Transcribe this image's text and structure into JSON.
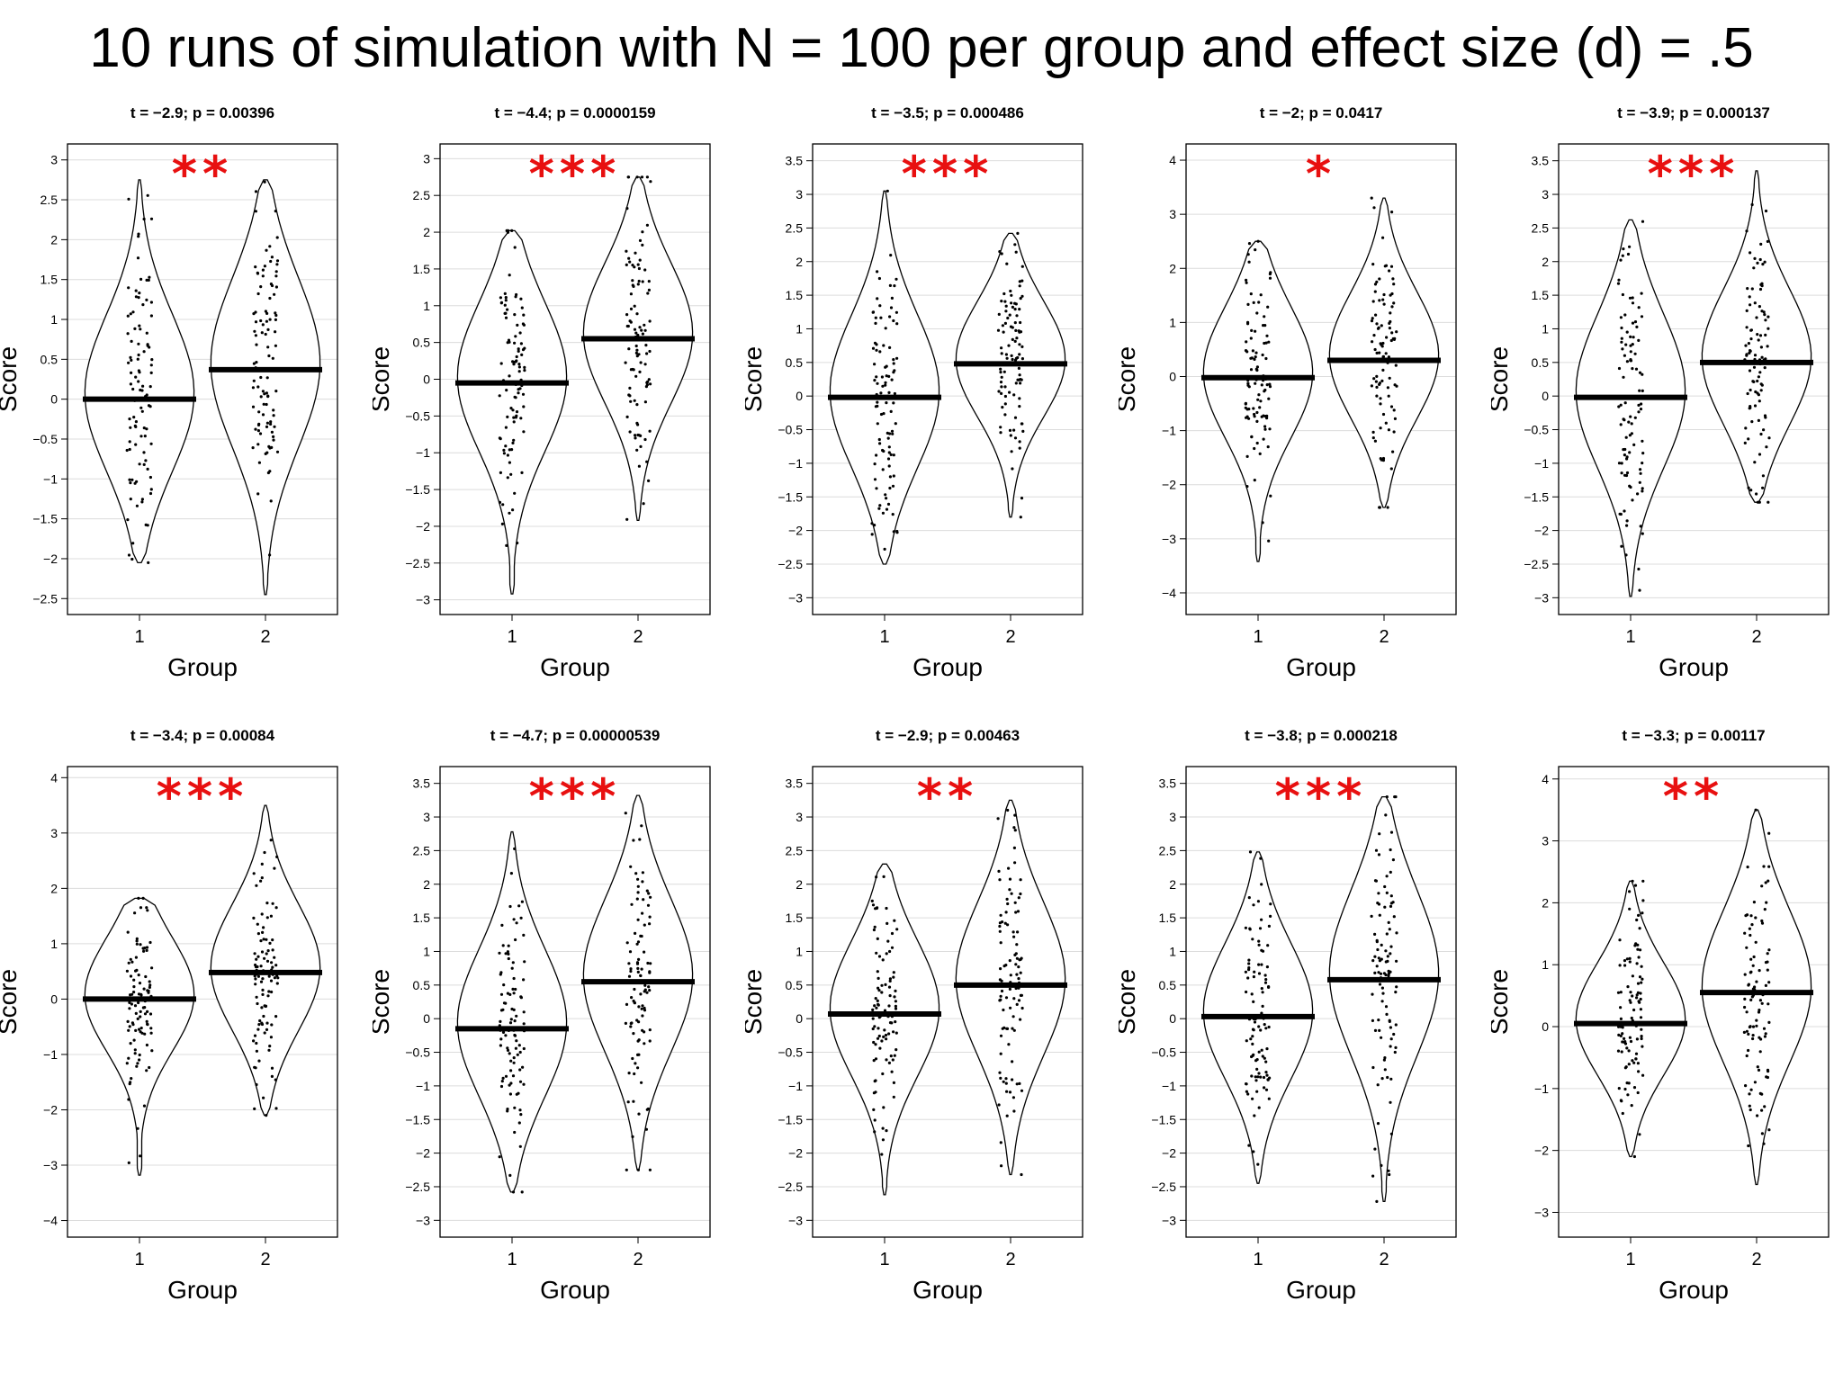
{
  "title": "10 runs of simulation with N = 100 per group and effect size (d) = .5",
  "chart_data": [
    {
      "type": "violin",
      "title": "t = −2.9; p = 0.00396",
      "stars": "**",
      "xlabel": "Group",
      "ylabel": "Score",
      "categories": [
        "1",
        "2"
      ],
      "ylim": [
        -2.7,
        3.2
      ],
      "yticks": [
        -2.5,
        -2,
        -1.5,
        -1,
        -0.5,
        0,
        0.5,
        1,
        1.5,
        2,
        2.5,
        3
      ],
      "group_means": [
        0.0,
        0.37
      ],
      "group_ranges": [
        [
          -2.05,
          2.75
        ],
        [
          -2.45,
          2.75
        ]
      ]
    },
    {
      "type": "violin",
      "title": "t = −4.4; p = 0.0000159",
      "stars": "***",
      "xlabel": "Group",
      "ylabel": "Score",
      "categories": [
        "1",
        "2"
      ],
      "ylim": [
        -3.2,
        3.2
      ],
      "yticks": [
        -3,
        -2.5,
        -2,
        -1.5,
        -1,
        -0.5,
        0,
        0.5,
        1,
        1.5,
        2,
        2.5,
        3
      ],
      "group_means": [
        -0.05,
        0.55
      ],
      "group_ranges": [
        [
          -2.92,
          2.02
        ],
        [
          -1.92,
          2.75
        ]
      ]
    },
    {
      "type": "violin",
      "title": "t = −3.5; p = 0.000486",
      "stars": "***",
      "xlabel": "Group",
      "ylabel": "Score",
      "categories": [
        "1",
        "2"
      ],
      "ylim": [
        -3.25,
        3.75
      ],
      "yticks": [
        -3,
        -2.5,
        -2,
        -1.5,
        -1,
        -0.5,
        0,
        0.5,
        1,
        1.5,
        2,
        2.5,
        3,
        3.5
      ],
      "group_means": [
        -0.02,
        0.48
      ],
      "group_ranges": [
        [
          -2.5,
          3.05
        ],
        [
          -1.8,
          2.42
        ]
      ]
    },
    {
      "type": "violin",
      "title": "t = −2; p = 0.0417",
      "stars": "*",
      "xlabel": "Group",
      "ylabel": "Score",
      "categories": [
        "1",
        "2"
      ],
      "ylim": [
        -4.4,
        4.3
      ],
      "yticks": [
        -4,
        -3,
        -2,
        -1,
        0,
        1,
        2,
        3,
        4
      ],
      "group_means": [
        -0.02,
        0.3
      ],
      "group_ranges": [
        [
          -3.42,
          2.5
        ],
        [
          -2.42,
          3.3
        ]
      ]
    },
    {
      "type": "violin",
      "title": "t = −3.9; p = 0.000137",
      "stars": "***",
      "xlabel": "Group",
      "ylabel": "Score",
      "categories": [
        "1",
        "2"
      ],
      "ylim": [
        -3.25,
        3.75
      ],
      "yticks": [
        -3,
        -2.5,
        -2,
        -1.5,
        -1,
        -0.5,
        0,
        0.5,
        1,
        1.5,
        2,
        2.5,
        3,
        3.5
      ],
      "group_means": [
        -0.02,
        0.5
      ],
      "group_ranges": [
        [
          -2.98,
          2.62
        ],
        [
          -1.58,
          3.35
        ]
      ]
    },
    {
      "type": "violin",
      "title": "t = −3.4; p = 0.00084",
      "stars": "***",
      "xlabel": "Group",
      "ylabel": "Score",
      "categories": [
        "1",
        "2"
      ],
      "ylim": [
        -4.3,
        4.2
      ],
      "yticks": [
        -4,
        -3,
        -2,
        -1,
        0,
        1,
        2,
        3,
        4
      ],
      "group_means": [
        0.0,
        0.48
      ],
      "group_ranges": [
        [
          -3.18,
          1.82
        ],
        [
          -2.1,
          3.5
        ]
      ]
    },
    {
      "type": "violin",
      "title": "t = −4.7; p = 0.00000539",
      "stars": "***",
      "xlabel": "Group",
      "ylabel": "Score",
      "categories": [
        "1",
        "2"
      ],
      "ylim": [
        -3.25,
        3.75
      ],
      "yticks": [
        -3,
        -2.5,
        -2,
        -1.5,
        -1,
        -0.5,
        0,
        0.5,
        1,
        1.5,
        2,
        2.5,
        3,
        3.5
      ],
      "group_means": [
        -0.15,
        0.55
      ],
      "group_ranges": [
        [
          -2.58,
          2.78
        ],
        [
          -2.25,
          3.32
        ]
      ]
    },
    {
      "type": "violin",
      "title": "t = −2.9; p = 0.00463",
      "stars": "**",
      "xlabel": "Group",
      "ylabel": "Score",
      "categories": [
        "1",
        "2"
      ],
      "ylim": [
        -3.25,
        3.75
      ],
      "yticks": [
        -3,
        -2.5,
        -2,
        -1.5,
        -1,
        -0.5,
        0,
        0.5,
        1,
        1.5,
        2,
        2.5,
        3,
        3.5
      ],
      "group_means": [
        0.07,
        0.5
      ],
      "group_ranges": [
        [
          -2.62,
          2.3
        ],
        [
          -2.32,
          3.25
        ]
      ]
    },
    {
      "type": "violin",
      "title": "t = −3.8; p = 0.000218",
      "stars": "***",
      "xlabel": "Group",
      "ylabel": "Score",
      "categories": [
        "1",
        "2"
      ],
      "ylim": [
        -3.25,
        3.75
      ],
      "yticks": [
        -3,
        -2.5,
        -2,
        -1.5,
        -1,
        -0.5,
        0,
        0.5,
        1,
        1.5,
        2,
        2.5,
        3,
        3.5
      ],
      "group_means": [
        0.03,
        0.58
      ],
      "group_ranges": [
        [
          -2.45,
          2.48
        ],
        [
          -2.72,
          3.3
        ]
      ]
    },
    {
      "type": "violin",
      "title": "t = −3.3; p = 0.00117",
      "stars": "**",
      "xlabel": "Group",
      "ylabel": "Score",
      "categories": [
        "1",
        "2"
      ],
      "ylim": [
        -3.4,
        4.2
      ],
      "yticks": [
        -3,
        -2,
        -1,
        0,
        1,
        2,
        3,
        4
      ],
      "group_means": [
        0.05,
        0.55
      ],
      "group_ranges": [
        [
          -2.1,
          2.35
        ],
        [
          -2.55,
          3.5
        ]
      ]
    }
  ]
}
